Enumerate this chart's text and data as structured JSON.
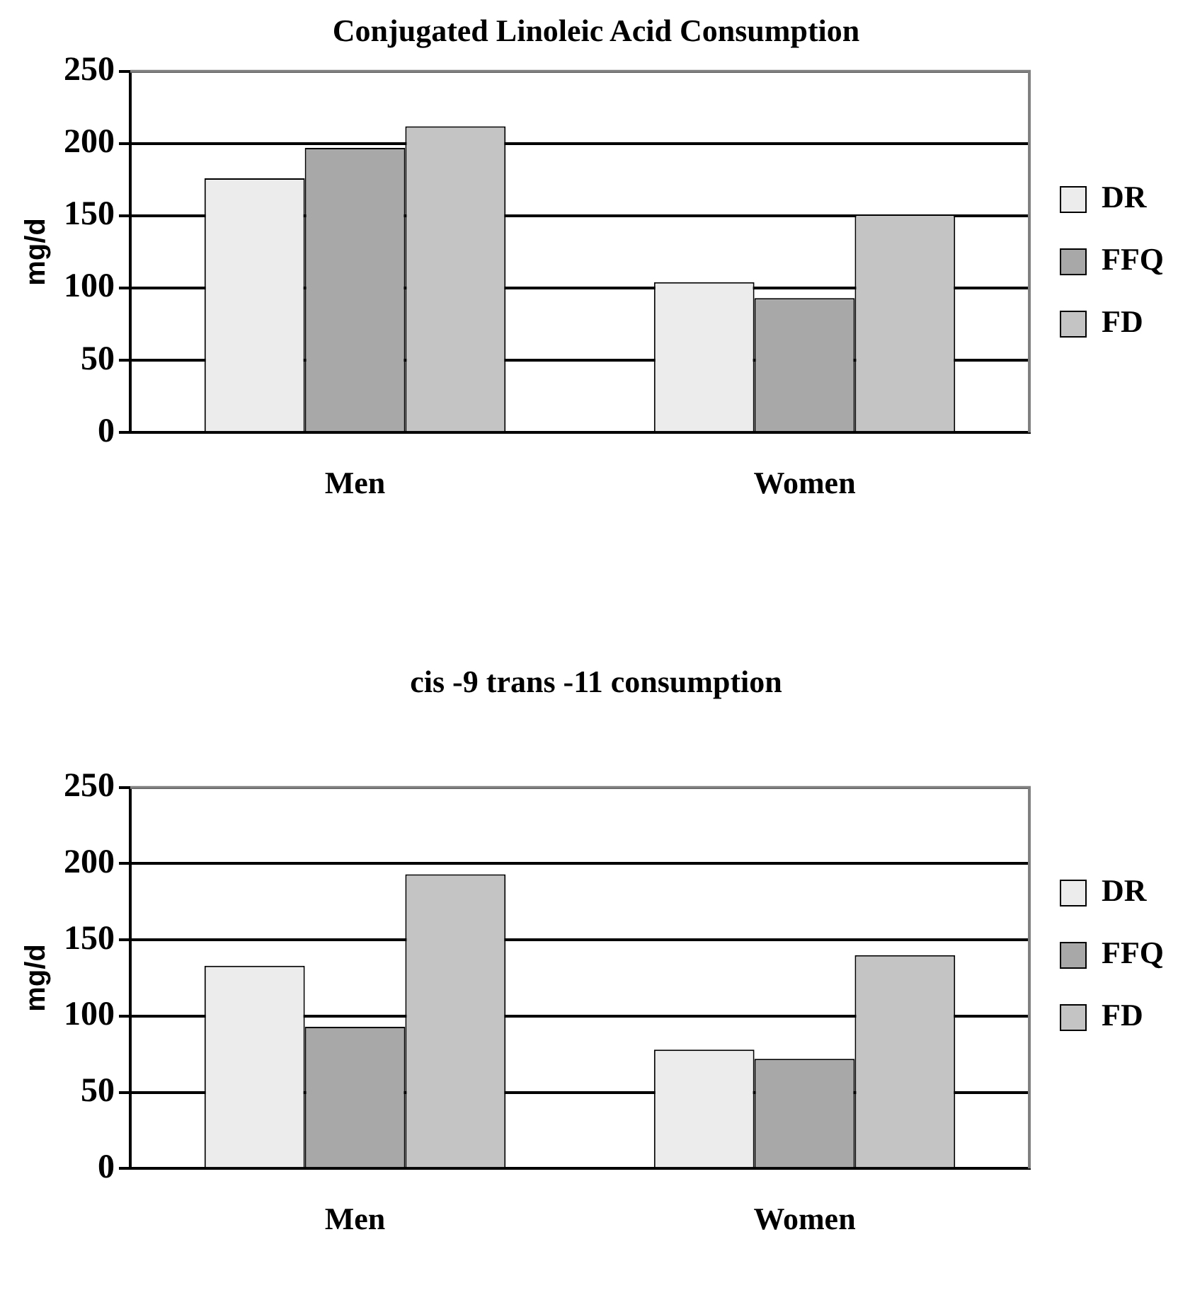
{
  "chart_data": [
    {
      "type": "bar",
      "title": "Conjugated Linoleic Acid Consumption",
      "ylabel": "mg/d",
      "categories": [
        "Men",
        "Women"
      ],
      "series": [
        {
          "name": "DR",
          "color": "#ececec",
          "values": [
            176,
            104
          ]
        },
        {
          "name": "FFQ",
          "color": "#a8a8a8",
          "values": [
            197,
            93
          ]
        },
        {
          "name": "FD",
          "color": "#c4c4c4",
          "values": [
            212,
            151
          ]
        }
      ],
      "ylim": [
        0,
        250
      ],
      "yticks": [
        0,
        50,
        100,
        150,
        200,
        250
      ],
      "grid": "y",
      "legend": "right"
    },
    {
      "type": "bar",
      "title": "cis -9 trans -11 consumption",
      "ylabel": "mg/d",
      "categories": [
        "Men",
        "Women"
      ],
      "series": [
        {
          "name": "DR",
          "color": "#ececec",
          "values": [
            133,
            78
          ]
        },
        {
          "name": "FFQ",
          "color": "#a8a8a8",
          "values": [
            93,
            72
          ]
        },
        {
          "name": "FD",
          "color": "#c4c4c4",
          "values": [
            193,
            140
          ]
        }
      ],
      "ylim": [
        0,
        250
      ],
      "yticks": [
        0,
        50,
        100,
        150,
        200,
        250
      ],
      "grid": "y",
      "legend": "right"
    }
  ]
}
